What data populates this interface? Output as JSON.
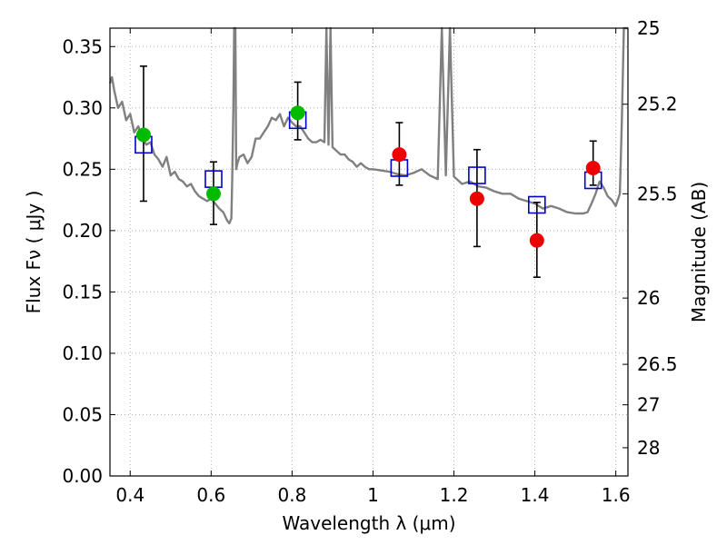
{
  "chart_data": {
    "type": "scatter",
    "xlabel": "Wavelength  λ (μm)",
    "ylabel": "Flux  Fν  ( μJy )",
    "y2label": "Magnitude (AB)",
    "xlim": [
      0.35,
      1.63
    ],
    "ylim": [
      0.0,
      0.365
    ],
    "grid": true,
    "x_ticks": [
      0.4,
      0.6,
      0.8,
      1.0,
      1.2,
      1.4,
      1.6
    ],
    "x_tick_labels": [
      "0.4",
      "0.6",
      "0.8",
      "1",
      "1.2",
      "1.4",
      "1.6"
    ],
    "y_ticks": [
      0.0,
      0.05,
      0.1,
      0.15,
      0.2,
      0.25,
      0.3,
      0.35
    ],
    "y_tick_labels": [
      "0.00",
      "0.05",
      "0.10",
      "0.15",
      "0.20",
      "0.25",
      "0.30",
      "0.35"
    ],
    "y2_ticks": [
      {
        "label": "25",
        "flux": 0.365
      },
      {
        "label": "25.2",
        "flux": 0.303
      },
      {
        "label": "25.5",
        "flux": 0.23
      },
      {
        "label": "26",
        "flux": 0.145
      },
      {
        "label": "26.5",
        "flux": 0.091
      },
      {
        "label": "27",
        "flux": 0.058
      },
      {
        "label": "28",
        "flux": 0.023
      }
    ],
    "colors": {
      "model_line": "#808080",
      "model_points": "#0000cc",
      "green_points": "#00bb00",
      "red_points": "#ee0000",
      "error_bars": "#000000",
      "grid": "#b0b0b0"
    },
    "model_spectrum": {
      "x": [
        0.35,
        0.355,
        0.36,
        0.37,
        0.38,
        0.39,
        0.4,
        0.41,
        0.42,
        0.43,
        0.44,
        0.45,
        0.46,
        0.47,
        0.48,
        0.49,
        0.5,
        0.51,
        0.52,
        0.53,
        0.54,
        0.55,
        0.56,
        0.57,
        0.58,
        0.59,
        0.6,
        0.61,
        0.62,
        0.63,
        0.64,
        0.645,
        0.65,
        0.652,
        0.655,
        0.657,
        0.66,
        0.662,
        0.665,
        0.67,
        0.68,
        0.69,
        0.7,
        0.71,
        0.72,
        0.73,
        0.74,
        0.75,
        0.76,
        0.77,
        0.78,
        0.79,
        0.8,
        0.81,
        0.82,
        0.83,
        0.84,
        0.85,
        0.86,
        0.87,
        0.88,
        0.885,
        0.89,
        0.895,
        0.9,
        0.91,
        0.92,
        0.93,
        0.94,
        0.95,
        0.96,
        0.97,
        0.98,
        0.99,
        1.0,
        1.02,
        1.04,
        1.06,
        1.08,
        1.1,
        1.12,
        1.14,
        1.16,
        1.17,
        1.18,
        1.19,
        1.2,
        1.22,
        1.24,
        1.26,
        1.28,
        1.3,
        1.32,
        1.34,
        1.36,
        1.38,
        1.4,
        1.42,
        1.44,
        1.46,
        1.48,
        1.5,
        1.52,
        1.53,
        1.54,
        1.55,
        1.56,
        1.57,
        1.58,
        1.59,
        1.6,
        1.61,
        1.615,
        1.62,
        1.63
      ],
      "y": [
        0.32,
        0.325,
        0.315,
        0.3,
        0.305,
        0.29,
        0.295,
        0.28,
        0.285,
        0.275,
        0.27,
        0.272,
        0.262,
        0.258,
        0.252,
        0.26,
        0.245,
        0.248,
        0.242,
        0.24,
        0.236,
        0.238,
        0.232,
        0.228,
        0.226,
        0.224,
        0.226,
        0.222,
        0.218,
        0.215,
        0.208,
        0.206,
        0.21,
        0.24,
        0.3,
        0.365,
        0.365,
        0.25,
        0.255,
        0.26,
        0.262,
        0.255,
        0.26,
        0.275,
        0.275,
        0.28,
        0.285,
        0.292,
        0.29,
        0.295,
        0.285,
        0.292,
        0.288,
        0.285,
        0.285,
        0.28,
        0.275,
        0.272,
        0.272,
        0.274,
        0.272,
        0.365,
        0.27,
        0.365,
        0.268,
        0.265,
        0.262,
        0.262,
        0.258,
        0.256,
        0.252,
        0.255,
        0.252,
        0.25,
        0.25,
        0.249,
        0.248,
        0.246,
        0.245,
        0.247,
        0.25,
        0.245,
        0.242,
        0.365,
        0.245,
        0.365,
        0.244,
        0.238,
        0.24,
        0.236,
        0.235,
        0.232,
        0.23,
        0.23,
        0.226,
        0.224,
        0.222,
        0.218,
        0.22,
        0.218,
        0.215,
        0.214,
        0.214,
        0.215,
        0.222,
        0.23,
        0.24,
        0.235,
        0.228,
        0.225,
        0.22,
        0.23,
        0.29,
        0.365,
        0.365
      ]
    },
    "error_bars": [
      {
        "x": 0.433,
        "y": 0.278,
        "low": 0.224,
        "high": 0.334
      },
      {
        "x": 0.606,
        "y": 0.23,
        "low": 0.205,
        "high": 0.256
      },
      {
        "x": 0.814,
        "y": 0.296,
        "low": 0.274,
        "high": 0.321
      },
      {
        "x": 1.065,
        "y": 0.262,
        "low": 0.237,
        "high": 0.288
      },
      {
        "x": 1.257,
        "y": 0.226,
        "low": 0.187,
        "high": 0.266
      },
      {
        "x": 1.405,
        "y": 0.192,
        "low": 0.162,
        "high": 0.223
      },
      {
        "x": 1.544,
        "y": 0.251,
        "low": 0.237,
        "high": 0.273
      }
    ],
    "series": [
      {
        "marker": "square",
        "x": [
          0.433,
          0.606,
          0.814,
          1.065,
          1.257,
          1.405,
          1.544
        ],
        "y": [
          0.27,
          0.242,
          0.29,
          0.251,
          0.245,
          0.221,
          0.241
        ]
      },
      {
        "marker": "circle-green",
        "x": [
          0.433,
          0.606,
          0.814
        ],
        "y": [
          0.278,
          0.23,
          0.296
        ]
      },
      {
        "marker": "circle-red",
        "x": [
          1.065,
          1.257,
          1.405,
          1.544
        ],
        "y": [
          0.262,
          0.226,
          0.192,
          0.251
        ]
      }
    ]
  }
}
